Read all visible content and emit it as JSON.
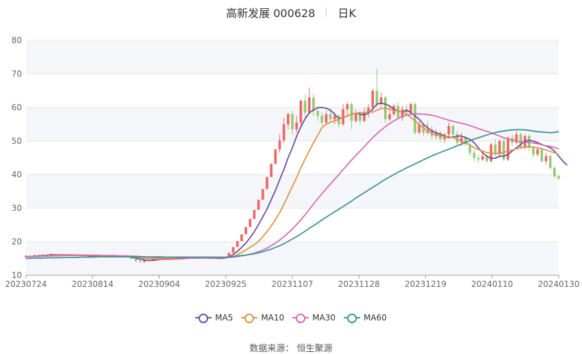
{
  "header": {
    "title": "高新发展 000628",
    "period": "日K"
  },
  "footer": {
    "source": "数据来源： 恒生聚源"
  },
  "colors": {
    "up": "#ee6666",
    "down": "#91cc75",
    "MA5": "#6e4c9f",
    "MA10": "#e09245",
    "MA30": "#d86bb0",
    "MA60": "#3a9595"
  },
  "chart_data": {
    "type": "candlestick",
    "ylim": [
      10,
      80
    ],
    "yticks": [
      10,
      20,
      30,
      40,
      50,
      60,
      70,
      80
    ],
    "xticks": [
      "20230724",
      "20230814",
      "20230904",
      "20230925",
      "20231107",
      "20231128",
      "20231219",
      "20240110",
      "20240130"
    ],
    "grid": true,
    "legend_position": "bottom",
    "candles": [
      [
        15.3,
        15.8,
        16.0,
        15.1
      ],
      [
        15.8,
        15.6,
        16.1,
        15.4
      ],
      [
        15.6,
        16.0,
        16.2,
        15.5
      ],
      [
        16.0,
        15.9,
        16.2,
        15.7
      ],
      [
        15.9,
        16.1,
        16.3,
        15.8
      ],
      [
        16.1,
        16.0,
        16.3,
        15.8
      ],
      [
        16.0,
        16.3,
        16.5,
        15.9
      ],
      [
        16.3,
        16.1,
        16.4,
        15.9
      ],
      [
        16.1,
        16.2,
        16.4,
        16.0
      ],
      [
        16.2,
        16.0,
        16.3,
        15.9
      ],
      [
        16.0,
        16.1,
        16.3,
        15.9
      ],
      [
        16.1,
        15.9,
        16.2,
        15.7
      ],
      [
        15.9,
        15.8,
        16.0,
        15.6
      ],
      [
        15.8,
        15.9,
        16.1,
        15.7
      ],
      [
        15.9,
        15.7,
        16.0,
        15.5
      ],
      [
        15.7,
        15.8,
        15.9,
        15.5
      ],
      [
        15.8,
        15.7,
        16.0,
        15.6
      ],
      [
        15.7,
        15.6,
        15.9,
        15.5
      ],
      [
        15.6,
        15.7,
        15.8,
        15.5
      ],
      [
        15.7,
        15.6,
        15.8,
        15.4
      ],
      [
        15.6,
        15.5,
        15.7,
        15.3
      ],
      [
        15.5,
        15.6,
        15.8,
        15.4
      ],
      [
        15.6,
        15.5,
        15.7,
        15.3
      ],
      [
        15.5,
        15.6,
        15.7,
        15.4
      ],
      [
        15.6,
        15.4,
        15.7,
        15.2
      ],
      [
        15.4,
        14.9,
        15.5,
        14.7
      ],
      [
        14.9,
        14.2,
        15.0,
        14.0
      ],
      [
        14.2,
        13.9,
        14.5,
        13.7
      ],
      [
        13.9,
        14.6,
        14.8,
        13.8
      ],
      [
        14.6,
        14.3,
        14.9,
        14.1
      ],
      [
        14.3,
        14.9,
        15.1,
        14.2
      ],
      [
        14.9,
        15.0,
        15.2,
        14.7
      ],
      [
        15.0,
        14.8,
        15.2,
        14.6
      ],
      [
        14.8,
        15.1,
        15.3,
        14.7
      ],
      [
        15.1,
        15.0,
        15.3,
        14.8
      ],
      [
        15.0,
        15.2,
        15.4,
        14.9
      ],
      [
        15.2,
        15.1,
        15.4,
        15.0
      ],
      [
        15.1,
        15.3,
        15.5,
        15.0
      ],
      [
        15.3,
        15.2,
        15.5,
        15.1
      ],
      [
        15.2,
        15.3,
        15.5,
        15.1
      ],
      [
        15.3,
        15.2,
        15.4,
        15.0
      ],
      [
        15.2,
        15.1,
        15.3,
        14.9
      ],
      [
        15.1,
        15.2,
        15.4,
        15.0
      ],
      [
        15.2,
        15.0,
        15.3,
        14.8
      ],
      [
        15.0,
        15.1,
        15.3,
        14.9
      ],
      [
        15.1,
        14.9,
        15.2,
        14.7
      ],
      [
        14.9,
        15.1,
        15.3,
        14.8
      ],
      [
        15.1,
        15.3,
        15.5,
        15.0
      ],
      [
        15.3,
        16.7,
        16.7,
        15.3
      ],
      [
        16.7,
        18.4,
        18.4,
        16.7
      ],
      [
        18.4,
        20.2,
        20.2,
        18.4
      ],
      [
        20.2,
        22.2,
        22.2,
        20.2
      ],
      [
        22.2,
        24.4,
        24.4,
        22.2
      ],
      [
        24.4,
        26.8,
        26.8,
        24.4
      ],
      [
        26.8,
        29.5,
        29.5,
        26.8
      ],
      [
        29.5,
        32.5,
        32.5,
        29.5
      ],
      [
        32.5,
        35.7,
        35.7,
        32.5
      ],
      [
        35.7,
        39.3,
        39.3,
        35.7
      ],
      [
        39.3,
        43.2,
        43.2,
        39.3
      ],
      [
        43.2,
        47.5,
        47.5,
        43.2
      ],
      [
        47.5,
        50.2,
        52.0,
        46.5
      ],
      [
        50.2,
        55.0,
        57.0,
        49.5
      ],
      [
        55.0,
        58.0,
        58.5,
        53.5
      ],
      [
        58.0,
        53.5,
        59.0,
        52.0
      ],
      [
        53.5,
        55.5,
        57.5,
        52.5
      ],
      [
        55.5,
        62.0,
        62.5,
        54.5
      ],
      [
        62.0,
        58.5,
        64.0,
        57.0
      ],
      [
        58.5,
        63.0,
        66.0,
        58.0
      ],
      [
        63.0,
        59.0,
        64.0,
        57.5
      ],
      [
        59.0,
        57.5,
        60.0,
        56.0
      ],
      [
        57.5,
        55.5,
        58.5,
        54.5
      ],
      [
        55.5,
        58.0,
        59.0,
        55.0
      ],
      [
        58.0,
        56.5,
        59.5,
        55.5
      ],
      [
        56.5,
        57.5,
        58.5,
        55.0
      ],
      [
        57.5,
        55.0,
        58.0,
        54.0
      ],
      [
        55.0,
        59.5,
        61.0,
        54.5
      ],
      [
        59.5,
        61.0,
        61.5,
        57.5
      ],
      [
        61.0,
        56.0,
        61.5,
        53.5
      ],
      [
        56.0,
        58.0,
        59.5,
        55.5
      ],
      [
        58.0,
        56.0,
        59.0,
        55.0
      ],
      [
        56.0,
        58.5,
        60.0,
        55.5
      ],
      [
        58.5,
        60.0,
        61.0,
        57.0
      ],
      [
        60.0,
        65.0,
        65.5,
        59.0
      ],
      [
        65.0,
        61.0,
        71.5,
        60.0
      ],
      [
        61.0,
        63.0,
        64.5,
        60.0
      ],
      [
        63.0,
        56.5,
        63.5,
        55.5
      ],
      [
        56.5,
        58.0,
        60.5,
        56.0
      ],
      [
        58.0,
        60.5,
        61.0,
        57.5
      ],
      [
        60.5,
        57.0,
        61.5,
        56.5
      ],
      [
        57.0,
        59.5,
        60.5,
        56.0
      ],
      [
        59.5,
        58.5,
        61.0,
        57.5
      ],
      [
        58.5,
        61.0,
        61.5,
        57.5
      ],
      [
        61.0,
        52.5,
        61.5,
        52.0
      ],
      [
        52.5,
        55.0,
        56.0,
        52.0
      ],
      [
        55.0,
        52.5,
        55.5,
        51.5
      ],
      [
        52.5,
        53.5,
        55.5,
        52.0
      ],
      [
        53.5,
        51.5,
        54.5,
        50.5
      ],
      [
        51.5,
        52.5,
        53.5,
        50.5
      ],
      [
        52.5,
        50.5,
        53.0,
        49.5
      ],
      [
        50.5,
        52.0,
        52.5,
        49.5
      ],
      [
        52.0,
        54.5,
        55.5,
        51.0
      ],
      [
        54.5,
        52.0,
        55.0,
        51.0
      ],
      [
        52.0,
        49.5,
        53.0,
        48.5
      ],
      [
        49.5,
        51.0,
        52.5,
        48.5
      ],
      [
        51.0,
        49.0,
        51.5,
        48.5
      ],
      [
        49.0,
        46.5,
        49.5,
        45.5
      ],
      [
        46.5,
        45.0,
        47.5,
        44.0
      ],
      [
        45.0,
        44.5,
        46.0,
        43.5
      ],
      [
        44.5,
        45.5,
        46.5,
        44.0
      ],
      [
        45.5,
        44.0,
        46.0,
        43.5
      ],
      [
        44.0,
        49.0,
        49.5,
        43.5
      ],
      [
        49.0,
        46.0,
        50.5,
        45.5
      ],
      [
        46.0,
        50.0,
        50.5,
        45.0
      ],
      [
        50.0,
        44.5,
        51.0,
        44.0
      ],
      [
        44.5,
        51.0,
        51.5,
        44.0
      ],
      [
        51.0,
        49.5,
        52.0,
        48.5
      ],
      [
        49.5,
        52.0,
        53.0,
        49.0
      ],
      [
        52.0,
        48.0,
        52.5,
        47.5
      ],
      [
        48.0,
        51.5,
        52.0,
        47.5
      ],
      [
        51.5,
        48.0,
        52.0,
        47.0
      ],
      [
        48.0,
        46.0,
        48.5,
        45.0
      ],
      [
        46.0,
        47.5,
        48.0,
        45.5
      ],
      [
        47.5,
        44.0,
        48.0,
        43.5
      ],
      [
        44.0,
        45.5,
        46.5,
        43.0
      ],
      [
        45.5,
        42.0,
        46.0,
        41.5
      ],
      [
        42.0,
        39.5,
        42.5,
        39.0
      ],
      [
        39.5,
        38.8,
        40.0,
        38.3
      ]
    ],
    "series": [
      {
        "name": "MA5",
        "values": [
          15.5,
          15.6,
          15.7,
          15.8,
          15.9,
          16.0,
          16.1,
          16.1,
          16.1,
          16.1,
          16.1,
          16.1,
          16.0,
          16.0,
          15.9,
          15.8,
          15.8,
          15.7,
          15.7,
          15.6,
          15.6,
          15.6,
          15.6,
          15.5,
          15.5,
          15.4,
          15.1,
          14.8,
          14.6,
          14.4,
          14.4,
          14.6,
          14.7,
          14.9,
          15.0,
          15.0,
          15.1,
          15.2,
          15.2,
          15.2,
          15.3,
          15.2,
          15.2,
          15.1,
          15.1,
          15.1,
          15.0,
          15.1,
          15.4,
          16.2,
          17.1,
          18.3,
          19.6,
          21.2,
          23.0,
          25.1,
          27.4,
          29.7,
          32.5,
          35.3,
          38.5,
          41.6,
          45.0,
          48.0,
          51.4,
          54.2,
          56.6,
          58.4,
          59.2,
          60.0,
          60.0,
          59.8,
          59.2,
          58.0,
          56.7,
          57.0,
          57.5,
          58.0,
          58.3,
          58.0,
          57.8,
          58.3,
          59.5,
          61.0,
          61.3,
          61.0,
          60.5,
          59.5,
          59.0,
          58.5,
          59.2,
          58.5,
          57.5,
          56.5,
          55.0,
          54.0,
          53.0,
          52.5,
          52.0,
          51.5,
          51.0,
          51.2,
          51.5,
          51.5,
          51.0,
          50.5,
          49.5,
          48.0,
          46.5,
          45.5,
          44.8,
          44.9,
          45.5,
          45.5,
          46.0,
          47.0,
          48.0,
          49.0,
          50.0,
          50.2,
          50.0,
          49.5,
          49.0,
          48.5,
          48.0,
          47.0,
          45.5,
          44.0,
          42.8
        ]
      },
      {
        "name": "MA10",
        "values": [
          15.5,
          15.6,
          15.7,
          15.7,
          15.8,
          15.9,
          15.9,
          16.0,
          16.0,
          16.0,
          16.1,
          16.1,
          16.1,
          16.0,
          16.0,
          15.9,
          15.9,
          15.8,
          15.8,
          15.7,
          15.7,
          15.6,
          15.6,
          15.6,
          15.5,
          15.5,
          15.4,
          15.2,
          15.1,
          15.0,
          14.9,
          14.8,
          14.7,
          14.7,
          14.7,
          14.8,
          14.8,
          14.9,
          15.0,
          15.1,
          15.1,
          15.2,
          15.2,
          15.2,
          15.2,
          15.2,
          15.2,
          15.2,
          15.3,
          15.6,
          16.1,
          16.8,
          17.5,
          18.3,
          19.1,
          20.1,
          21.5,
          23.0,
          24.7,
          26.6,
          28.7,
          31.1,
          33.8,
          36.5,
          39.1,
          42.0,
          44.6,
          47.1,
          49.5,
          51.7,
          54.0,
          55.0,
          55.6,
          56.0,
          56.5,
          57.0,
          57.5,
          58.0,
          58.3,
          58.4,
          58.5,
          58.7,
          58.6,
          59.2,
          59.7,
          59.8,
          59.5,
          59.2,
          59.0,
          58.5,
          58.0,
          57.0,
          56.0,
          55.0,
          54.0,
          53.0,
          52.3,
          51.8,
          51.5,
          51.4,
          51.3,
          51.0,
          50.5,
          50.0,
          49.5,
          48.8,
          48.0,
          47.5,
          47.0,
          46.6,
          46.4,
          46.3,
          46.4,
          46.6,
          47.0,
          47.3,
          47.7,
          48.0,
          48.2,
          48.3,
          48.2,
          48.0,
          47.7,
          47.3,
          46.9,
          46.5,
          46.0
        ]
      },
      {
        "name": "MA30",
        "values": [
          15.5,
          15.5,
          15.6,
          15.6,
          15.7,
          15.7,
          15.8,
          15.8,
          15.8,
          15.9,
          15.9,
          15.9,
          15.9,
          15.9,
          16.0,
          16.0,
          16.0,
          16.0,
          15.9,
          15.9,
          15.9,
          15.9,
          15.8,
          15.8,
          15.8,
          15.7,
          15.7,
          15.6,
          15.5,
          15.4,
          15.3,
          15.2,
          15.1,
          15.0,
          15.0,
          15.0,
          15.0,
          15.0,
          15.0,
          15.1,
          15.1,
          15.1,
          15.1,
          15.1,
          15.1,
          15.2,
          15.2,
          15.2,
          15.3,
          15.4,
          15.6,
          15.8,
          16.0,
          16.3,
          16.6,
          17.0,
          17.5,
          18.1,
          18.8,
          19.6,
          20.5,
          21.5,
          22.6,
          23.8,
          25.1,
          26.5,
          28.0,
          29.6,
          31.2,
          32.8,
          34.3,
          35.8,
          37.2,
          38.6,
          40.0,
          41.5,
          42.9,
          44.3,
          45.7,
          47.0,
          48.3,
          49.7,
          51.0,
          52.2,
          53.3,
          54.3,
          55.2,
          56.0,
          56.7,
          57.3,
          57.7,
          58.0,
          58.1,
          58.1,
          58.0,
          57.9,
          57.7,
          57.4,
          57.0,
          56.6,
          56.2,
          55.9,
          55.6,
          55.3,
          55.0,
          54.6,
          54.2,
          53.7,
          53.3,
          52.9,
          52.5,
          52.0,
          51.5,
          51.0,
          50.6,
          50.3,
          50.0,
          49.8,
          49.7,
          49.6,
          49.4,
          49.2,
          48.9,
          48.6,
          48.4,
          48.1,
          47.7
        ]
      },
      {
        "name": "MA60",
        "values": [
          15.0,
          15.0,
          15.1,
          15.1,
          15.1,
          15.2,
          15.2,
          15.2,
          15.2,
          15.3,
          15.3,
          15.3,
          15.3,
          15.4,
          15.4,
          15.4,
          15.4,
          15.5,
          15.5,
          15.5,
          15.5,
          15.5,
          15.5,
          15.5,
          15.5,
          15.5,
          15.5,
          15.5,
          15.5,
          15.5,
          15.5,
          15.5,
          15.5,
          15.4,
          15.4,
          15.4,
          15.4,
          15.4,
          15.4,
          15.4,
          15.4,
          15.4,
          15.4,
          15.4,
          15.4,
          15.4,
          15.4,
          15.4,
          15.5,
          15.6,
          15.7,
          15.9,
          16.0,
          16.2,
          16.4,
          16.7,
          17.0,
          17.4,
          17.8,
          18.3,
          18.8,
          19.4,
          20.1,
          20.8,
          21.5,
          22.3,
          23.1,
          24.0,
          24.8,
          25.6,
          26.5,
          27.3,
          28.1,
          28.9,
          29.7,
          30.5,
          31.3,
          32.1,
          33.0,
          33.8,
          34.6,
          35.4,
          36.2,
          37.0,
          37.8,
          38.6,
          39.3,
          40.0,
          40.7,
          41.3,
          42.0,
          42.6,
          43.2,
          43.8,
          44.4,
          45.0,
          45.6,
          46.1,
          46.6,
          47.1,
          47.6,
          48.1,
          48.6,
          49.1,
          49.6,
          50.1,
          50.6,
          51.0,
          51.4,
          51.8,
          52.2,
          52.5,
          52.8,
          53.0,
          53.2,
          53.3,
          53.4,
          53.4,
          53.3,
          53.2,
          53.0,
          52.8,
          52.7,
          52.6,
          52.5,
          52.6,
          52.8
        ]
      }
    ]
  }
}
